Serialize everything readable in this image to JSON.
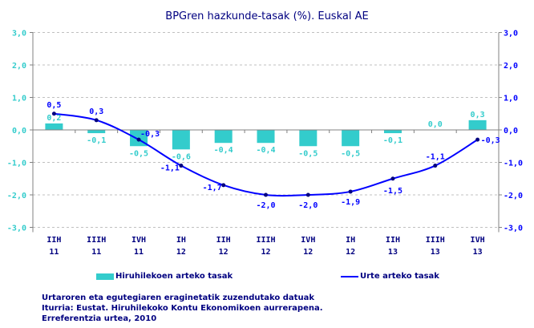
{
  "chart_data": {
    "type": "bar+line",
    "title": "BPGren hazkunde-tasak (%). Euskal AE",
    "categories": [
      [
        "IIH",
        "11"
      ],
      [
        "IIIH",
        "11"
      ],
      [
        "IVH",
        "11"
      ],
      [
        "IH",
        "12"
      ],
      [
        "IIH",
        "12"
      ],
      [
        "IIIH",
        "12"
      ],
      [
        "IVH",
        "12"
      ],
      [
        "IH",
        "12"
      ],
      [
        "IIH",
        "13"
      ],
      [
        "IIIH",
        "13"
      ],
      [
        "IVH",
        "13"
      ]
    ],
    "series": [
      {
        "name": "Hiruhilekoen arteko tasak",
        "type": "bar",
        "axis": "left",
        "color": "#33CCCC",
        "values": [
          0.2,
          -0.1,
          -0.5,
          -0.6,
          -0.4,
          -0.4,
          -0.5,
          -0.5,
          -0.1,
          0.0,
          0.3
        ],
        "labels": [
          "0,2",
          "-0,1",
          "-0,5",
          "-0,6",
          "-0,4",
          "-0,4",
          "-0,5",
          "-0,5",
          "-0,1",
          "0,0",
          "0,3"
        ]
      },
      {
        "name": "Urte arteko tasak",
        "type": "line",
        "axis": "right",
        "color": "#0000FF",
        "values": [
          0.5,
          0.3,
          -0.3,
          -1.1,
          -1.7,
          -2.0,
          -2.0,
          -1.9,
          -1.5,
          -1.1,
          -0.3
        ],
        "labels": [
          "0,5",
          "0,3",
          "-0,3",
          "-1,1",
          "-1,7",
          "-2,0",
          "-2,0",
          "-1,9",
          "-1,5",
          "-1,1",
          "-0,3"
        ]
      }
    ],
    "ylim": [
      -3,
      3
    ],
    "yticks": [
      "3,0",
      "2,0",
      "1,0",
      "0,0",
      "-1,0",
      "-2,0",
      "-3,0"
    ],
    "grid": true,
    "legend_position": "bottom",
    "left_axis_color": "#33CCCC",
    "right_axis_color": "#0000FF"
  },
  "footer": {
    "line1": "Urtaroren eta egutegiaren eraginetatik zuzendutako datuak",
    "line2": "Iturria: Eustat. Hiruhilekoko Kontu Ekonomikoen aurrerapena. Erreferentzia urtea, 2010"
  }
}
